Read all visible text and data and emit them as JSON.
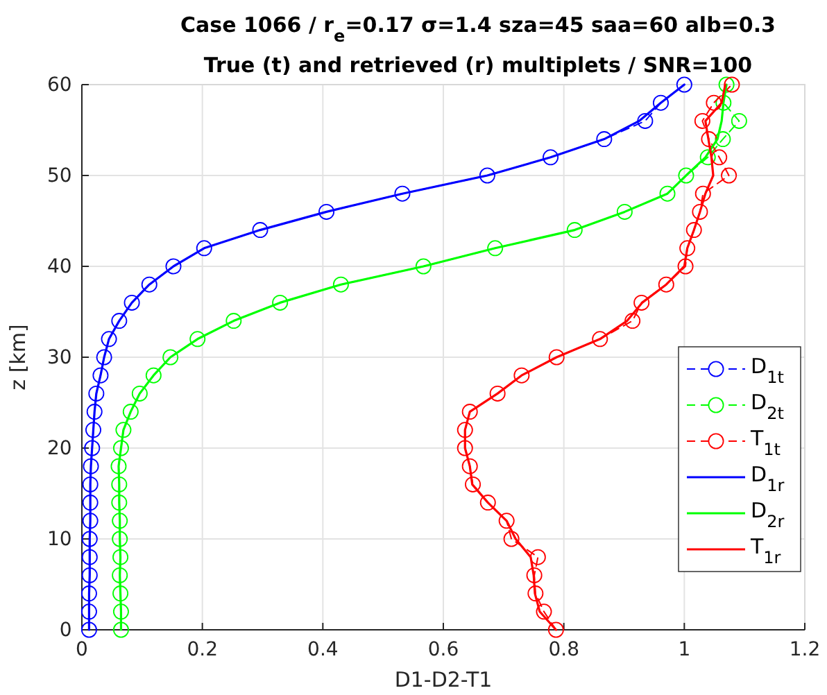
{
  "chart_data": {
    "type": "line",
    "title": "Case 1066 / r$_{e}$=0.17 σ=1.4 sza=45 saa=60 alb=0.3",
    "subtitle": "True (t) and retrieved (r) multiplets / SNR=100",
    "xlabel": "D1-D2-T1",
    "ylabel": "z [km]",
    "xlim": [
      0,
      1.2
    ],
    "xticks": [
      0,
      0.2,
      0.4,
      0.6,
      0.8,
      1,
      1.2
    ],
    "ylim": [
      0,
      60
    ],
    "yticks": [
      0,
      10,
      20,
      30,
      40,
      50,
      60
    ],
    "grid": true,
    "legend": "bottom right",
    "series": [
      {
        "name": "D$_{1t}$",
        "color": "#0000ff",
        "line_style": "dashed",
        "marker": "circle",
        "x": [
          0.012,
          0.012,
          0.012,
          0.013,
          0.013,
          0.013,
          0.014,
          0.014,
          0.014,
          0.015,
          0.017,
          0.019,
          0.021,
          0.024,
          0.031,
          0.037,
          0.045,
          0.062,
          0.083,
          0.112,
          0.152,
          0.203,
          0.296,
          0.406,
          0.532,
          0.673,
          0.778,
          0.867,
          0.935,
          0.961,
          1.0
        ],
        "values": [
          0,
          2,
          4,
          6,
          8,
          10,
          12,
          14,
          16,
          18,
          20,
          22,
          24,
          26,
          28,
          30,
          32,
          34,
          36,
          38,
          40,
          42,
          44,
          46,
          48,
          50,
          52,
          54,
          56,
          58,
          60
        ]
      },
      {
        "name": "D$_{2t}$",
        "color": "#00ff00",
        "line_style": "dashed",
        "marker": "circle",
        "x": [
          0.065,
          0.065,
          0.064,
          0.063,
          0.064,
          0.063,
          0.063,
          0.062,
          0.062,
          0.061,
          0.065,
          0.069,
          0.081,
          0.096,
          0.119,
          0.147,
          0.192,
          0.252,
          0.329,
          0.43,
          0.567,
          0.686,
          0.818,
          0.901,
          0.972,
          1.003,
          1.039,
          1.064,
          1.091,
          1.065,
          1.07
        ],
        "values": [
          0,
          2,
          4,
          6,
          8,
          10,
          12,
          14,
          16,
          18,
          20,
          22,
          24,
          26,
          28,
          30,
          32,
          34,
          36,
          38,
          40,
          42,
          44,
          46,
          48,
          50,
          52,
          54,
          56,
          58,
          60
        ]
      },
      {
        "name": "T$_{1t}$",
        "color": "#ff0000",
        "line_style": "dashed",
        "marker": "circle",
        "x": [
          0.787,
          0.767,
          0.753,
          0.751,
          0.757,
          0.713,
          0.705,
          0.674,
          0.649,
          0.644,
          0.636,
          0.636,
          0.644,
          0.69,
          0.73,
          0.788,
          0.86,
          0.914,
          0.929,
          0.97,
          1.002,
          1.005,
          1.016,
          1.026,
          1.031,
          1.074,
          1.058,
          1.041,
          1.03,
          1.049,
          1.079
        ],
        "values": [
          0,
          2,
          4,
          6,
          8,
          10,
          12,
          14,
          16,
          18,
          20,
          22,
          24,
          26,
          28,
          30,
          32,
          34,
          36,
          38,
          40,
          42,
          44,
          46,
          48,
          50,
          52,
          54,
          56,
          58,
          60
        ]
      },
      {
        "name": "D$_{1r}$",
        "color": "#0000ff",
        "line_style": "solid",
        "marker": "none",
        "x": [
          0.012,
          0.012,
          0.012,
          0.013,
          0.013,
          0.013,
          0.014,
          0.014,
          0.014,
          0.015,
          0.017,
          0.019,
          0.021,
          0.024,
          0.031,
          0.037,
          0.045,
          0.062,
          0.083,
          0.112,
          0.152,
          0.203,
          0.296,
          0.406,
          0.532,
          0.673,
          0.778,
          0.867,
          0.925,
          0.961,
          1.0
        ],
        "values": [
          0,
          2,
          4,
          6,
          8,
          10,
          12,
          14,
          16,
          18,
          20,
          22,
          24,
          26,
          28,
          30,
          32,
          34,
          36,
          38,
          40,
          42,
          44,
          46,
          48,
          50,
          52,
          54,
          56,
          58,
          60
        ]
      },
      {
        "name": "D$_{2r}$",
        "color": "#00ff00",
        "line_style": "solid",
        "marker": "none",
        "x": [
          0.065,
          0.065,
          0.064,
          0.063,
          0.064,
          0.063,
          0.063,
          0.062,
          0.062,
          0.061,
          0.065,
          0.069,
          0.081,
          0.096,
          0.119,
          0.147,
          0.192,
          0.252,
          0.329,
          0.43,
          0.567,
          0.686,
          0.818,
          0.901,
          0.972,
          1.003,
          1.035,
          1.055,
          1.062,
          1.065,
          1.07
        ],
        "values": [
          0,
          2,
          4,
          6,
          8,
          10,
          12,
          14,
          16,
          18,
          20,
          22,
          24,
          26,
          28,
          30,
          32,
          34,
          36,
          38,
          40,
          42,
          44,
          46,
          48,
          50,
          52,
          54,
          56,
          58,
          60
        ]
      },
      {
        "name": "T$_{1r}$",
        "color": "#ff0000",
        "line_style": "solid",
        "marker": "none",
        "x": [
          0.787,
          0.76,
          0.752,
          0.75,
          0.745,
          0.72,
          0.705,
          0.674,
          0.648,
          0.644,
          0.636,
          0.636,
          0.644,
          0.69,
          0.73,
          0.788,
          0.86,
          0.905,
          0.93,
          0.97,
          1.0,
          1.005,
          1.016,
          1.026,
          1.035,
          1.048,
          1.045,
          1.04,
          1.035,
          1.062,
          1.068
        ],
        "values": [
          0,
          2,
          4,
          6,
          8,
          10,
          12,
          14,
          16,
          18,
          20,
          22,
          24,
          26,
          28,
          30,
          32,
          34,
          36,
          38,
          40,
          42,
          44,
          46,
          48,
          50,
          52,
          54,
          56,
          58,
          60
        ]
      }
    ]
  }
}
